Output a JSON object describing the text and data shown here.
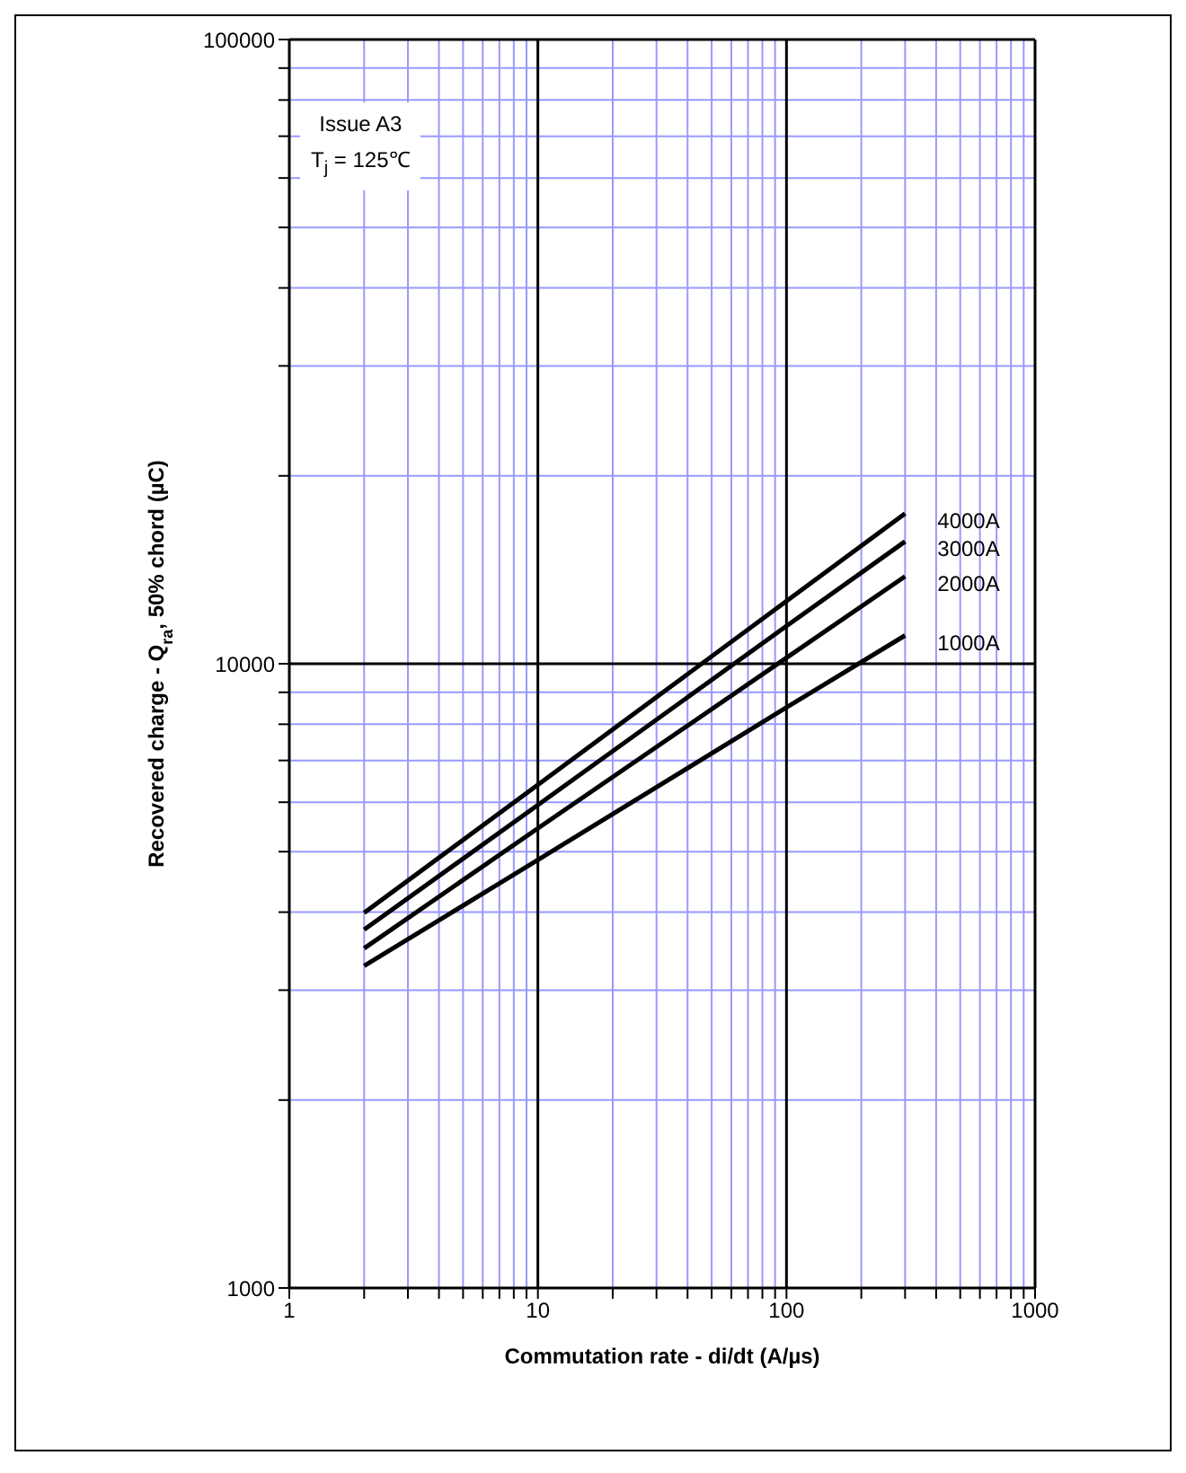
{
  "chart_data": {
    "type": "line",
    "xlabel": "Commutation rate - di/dt (A/µs)",
    "ylabel": "Recovered charge - Q$_{ra}$, 50% chord (µC)",
    "annotations": [
      "Issue A3",
      "T$_{j}$ = 125℃"
    ],
    "x": [
      2,
      10,
      100,
      300
    ],
    "series": [
      {
        "name": "4000A",
        "color": "#000000",
        "values": [
          3990,
          6400,
          12600,
          17400
        ]
      },
      {
        "name": "3000A",
        "color": "#000000",
        "values": [
          3750,
          5940,
          11490,
          15700
        ]
      },
      {
        "name": "2000A",
        "color": "#000000",
        "values": [
          3500,
          5450,
          10220,
          13800
        ]
      },
      {
        "name": "1000A",
        "color": "#000000",
        "values": [
          3280,
          4850,
          8510,
          11100
        ]
      }
    ],
    "log": "xy",
    "xlim": [
      1,
      1000
    ],
    "ylim": [
      1000,
      100000
    ],
    "xticks": [
      1,
      {
        "value": 2,
        "label": null
      },
      {
        "value": 3,
        "label": null
      },
      {
        "value": 4,
        "label": null
      },
      {
        "value": 5,
        "label": null
      },
      {
        "value": 6,
        "label": null
      },
      {
        "value": 7,
        "label": null
      },
      {
        "value": 8,
        "label": null
      },
      {
        "value": 9,
        "label": null
      },
      10,
      {
        "value": 20,
        "label": null
      },
      {
        "value": 30,
        "label": null
      },
      {
        "value": 40,
        "label": null
      },
      {
        "value": 50,
        "label": null
      },
      {
        "value": 60,
        "label": null
      },
      {
        "value": 70,
        "label": null
      },
      {
        "value": 80,
        "label": null
      },
      {
        "value": 90,
        "label": null
      },
      100,
      {
        "value": 200,
        "label": null
      },
      {
        "value": 300,
        "label": null
      },
      {
        "value": 400,
        "label": null
      },
      {
        "value": 500,
        "label": null
      },
      {
        "value": 600,
        "label": null
      },
      {
        "value": 700,
        "label": null
      },
      {
        "value": 800,
        "label": null
      },
      {
        "value": 900,
        "label": null
      },
      1000
    ],
    "yticks": [
      1000,
      {
        "value": 2000,
        "label": null
      },
      {
        "value": 3000,
        "label": null
      },
      {
        "value": 4000,
        "label": null
      },
      {
        "value": 5000,
        "label": null
      },
      {
        "value": 6000,
        "label": null
      },
      {
        "value": 7000,
        "label": null
      },
      {
        "value": 8000,
        "label": null
      },
      {
        "value": 9000,
        "label": null
      },
      10000,
      {
        "value": 20000,
        "label": null
      },
      {
        "value": 30000,
        "label": null
      },
      {
        "value": 40000,
        "label": null
      },
      {
        "value": 50000,
        "label": null
      },
      {
        "value": 60000,
        "label": null
      },
      {
        "value": 70000,
        "label": null
      },
      {
        "value": 80000,
        "label": null
      },
      {
        "value": 90000,
        "label": null
      },
      100000
    ],
    "grid": true,
    "marker": "none",
    "line_style": "solid"
  }
}
